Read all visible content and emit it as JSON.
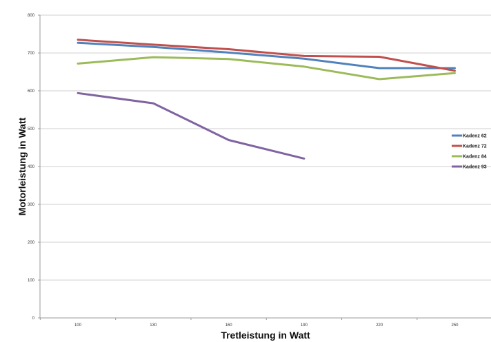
{
  "chart_data": {
    "type": "line",
    "title": "",
    "xlabel": "Tretleistung in Watt",
    "ylabel": "Motorleistung in Watt",
    "categories": [
      "100",
      "130",
      "160",
      "190",
      "220",
      "250"
    ],
    "ylim": [
      0,
      800
    ],
    "yticks": [
      0,
      100,
      200,
      300,
      400,
      500,
      600,
      700,
      800
    ],
    "grid": true,
    "legend_position": "right",
    "series": [
      {
        "name": "Kadenz 62",
        "color": "#4f81bd",
        "values": [
          727,
          716,
          701,
          685,
          660,
          660
        ]
      },
      {
        "name": "Kadenz 72",
        "color": "#c0504d",
        "values": [
          735,
          722,
          710,
          692,
          690,
          653
        ]
      },
      {
        "name": "Kadenz 84",
        "color": "#9bbb59",
        "values": [
          672,
          689,
          684,
          664,
          631,
          647
        ]
      },
      {
        "name": "Kadenz 93",
        "color": "#8064a2",
        "values": [
          594,
          567,
          470,
          421,
          null,
          null
        ]
      }
    ]
  }
}
